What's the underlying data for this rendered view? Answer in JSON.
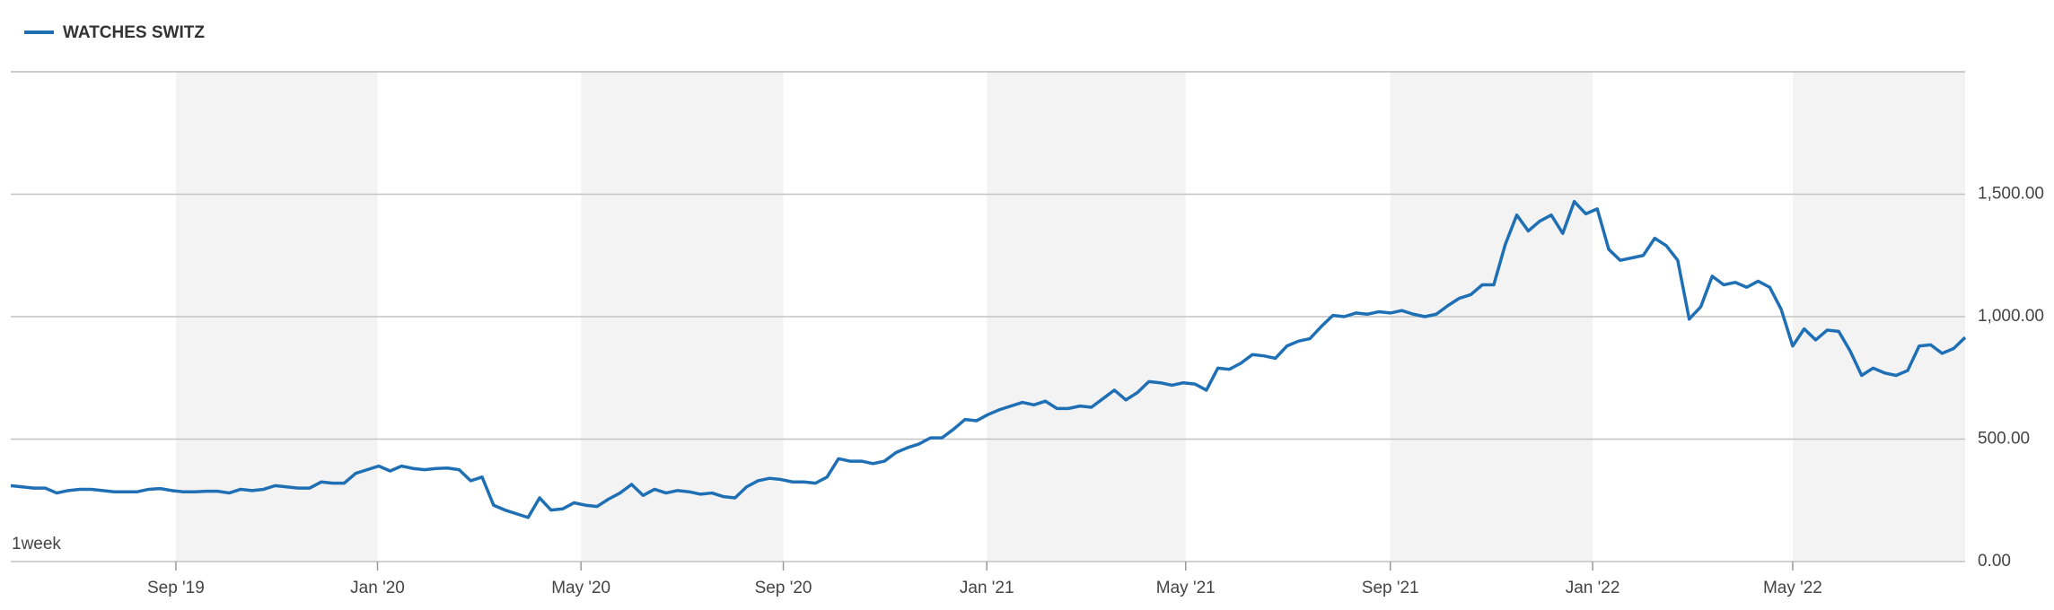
{
  "chart_data": {
    "type": "line",
    "interval_label": "1week",
    "series": [
      {
        "name": "WATCHES SWITZ",
        "color": "#1f6fb5",
        "values": [
          310,
          305,
          300,
          300,
          280,
          290,
          295,
          295,
          290,
          285,
          285,
          285,
          295,
          298,
          290,
          285,
          285,
          287,
          287,
          280,
          295,
          290,
          295,
          310,
          305,
          300,
          300,
          325,
          320,
          320,
          360,
          375,
          390,
          370,
          390,
          380,
          375,
          380,
          382,
          375,
          330,
          345,
          230,
          210,
          195,
          180,
          260,
          210,
          215,
          240,
          230,
          225,
          255,
          280,
          315,
          270,
          295,
          280,
          290,
          285,
          275,
          280,
          265,
          260,
          305,
          330,
          340,
          335,
          325,
          325,
          320,
          345,
          420,
          410,
          410,
          400,
          410,
          445,
          465,
          480,
          505,
          505,
          540,
          580,
          575,
          600,
          620,
          635,
          650,
          640,
          655,
          625,
          625,
          635,
          630,
          665,
          700,
          660,
          690,
          735,
          730,
          720,
          730,
          725,
          700,
          790,
          785,
          810,
          845,
          840,
          830,
          880,
          900,
          910,
          960,
          1005,
          1000,
          1015,
          1010,
          1020,
          1015,
          1025,
          1010,
          1000,
          1010,
          1045,
          1075,
          1090,
          1130,
          1130,
          1295,
          1415,
          1350,
          1390,
          1415,
          1340,
          1470,
          1420,
          1440,
          1275,
          1230,
          1240,
          1250,
          1320,
          1290,
          1230,
          990,
          1040,
          1165,
          1130,
          1140,
          1120,
          1145,
          1120,
          1030,
          880,
          950,
          905,
          945,
          940,
          860,
          760,
          790,
          770,
          760,
          780,
          880,
          885,
          850,
          870,
          915
        ]
      }
    ],
    "xlim": [
      0,
      170
    ],
    "xticks": [
      {
        "value": 14.36,
        "label": "Sep '19"
      },
      {
        "value": 31.9,
        "label": "Jan '20"
      },
      {
        "value": 49.6,
        "label": "May '20"
      },
      {
        "value": 67.2,
        "label": "Sep '20"
      },
      {
        "value": 84.9,
        "label": "Jan '21"
      },
      {
        "value": 102.2,
        "label": "May '21"
      },
      {
        "value": 120.0,
        "label": "Sep '21"
      },
      {
        "value": 137.6,
        "label": "Jan '22"
      },
      {
        "value": 155.0,
        "label": "May '22"
      }
    ],
    "ylim": [
      0,
      2000
    ],
    "yticks": [
      {
        "value": 0,
        "label": "0.00"
      },
      {
        "value": 500,
        "label": "500.00"
      },
      {
        "value": 1000,
        "label": "1,000.00"
      },
      {
        "value": 1500,
        "label": "1,500.00"
      }
    ],
    "grid": true
  }
}
